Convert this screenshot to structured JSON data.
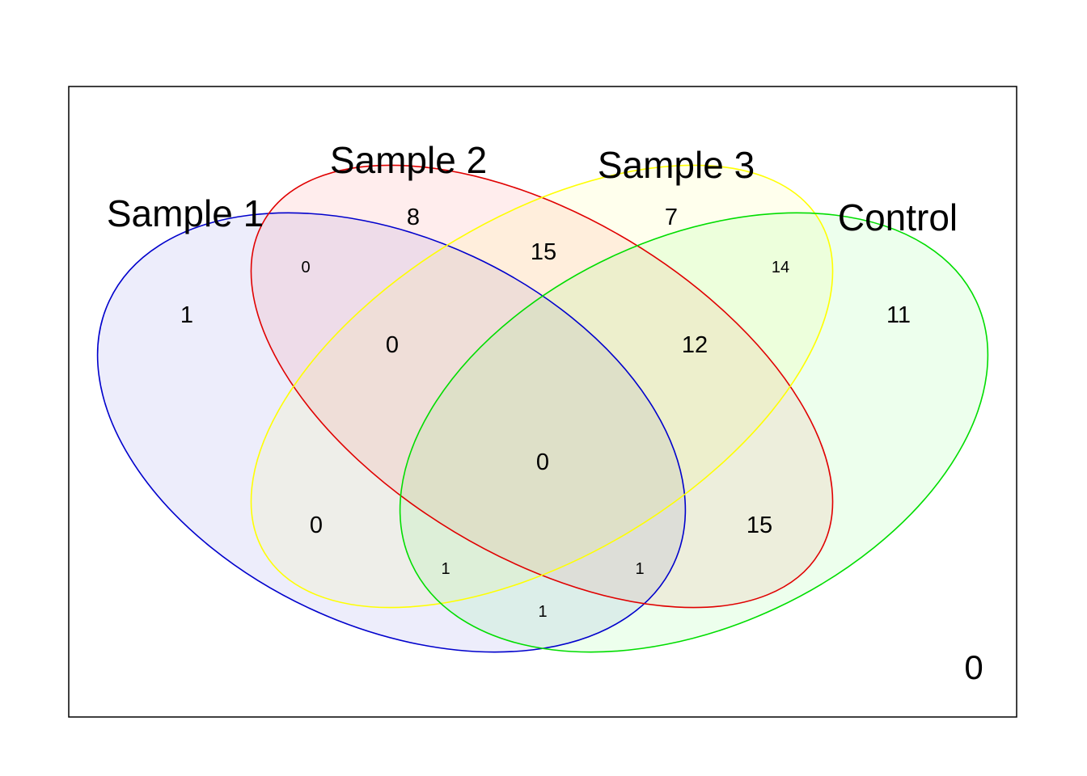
{
  "sets": [
    {
      "id": "s1",
      "name": "Sample 1",
      "color": "#0000cc",
      "fill": "#0000cc"
    },
    {
      "id": "s2",
      "name": "Sample 2",
      "color": "#e00000",
      "fill": "#ff0000"
    },
    {
      "id": "s3",
      "name": "Sample 3",
      "color": "#ffff00",
      "fill": "#ffff00"
    },
    {
      "id": "control",
      "name": "Control",
      "color": "#00dd00",
      "fill": "#00ff00"
    }
  ],
  "regions": [
    {
      "sets": [
        "s1"
      ],
      "count": "1"
    },
    {
      "sets": [
        "s2"
      ],
      "count": "8"
    },
    {
      "sets": [
        "s3"
      ],
      "count": "7"
    },
    {
      "sets": [
        "control"
      ],
      "count": "11"
    },
    {
      "sets": [
        "s1",
        "s2"
      ],
      "count": "0"
    },
    {
      "sets": [
        "s2",
        "s3"
      ],
      "count": "15"
    },
    {
      "sets": [
        "s3",
        "control"
      ],
      "count": "14"
    },
    {
      "sets": [
        "s1",
        "s2",
        "s3"
      ],
      "count": "0"
    },
    {
      "sets": [
        "s2",
        "s3",
        "control"
      ],
      "count": "12"
    },
    {
      "sets": [
        "s1",
        "s2",
        "s3",
        "control"
      ],
      "count": "0"
    },
    {
      "sets": [
        "s1",
        "s3"
      ],
      "count": "0"
    },
    {
      "sets": [
        "s2",
        "control"
      ],
      "count": "15"
    },
    {
      "sets": [
        "s1",
        "s3",
        "control"
      ],
      "count": "1"
    },
    {
      "sets": [
        "s1",
        "s2",
        "control"
      ],
      "count": "1"
    },
    {
      "sets": [
        "s1",
        "control"
      ],
      "count": "1"
    }
  ],
  "outside": {
    "count": "0"
  }
}
